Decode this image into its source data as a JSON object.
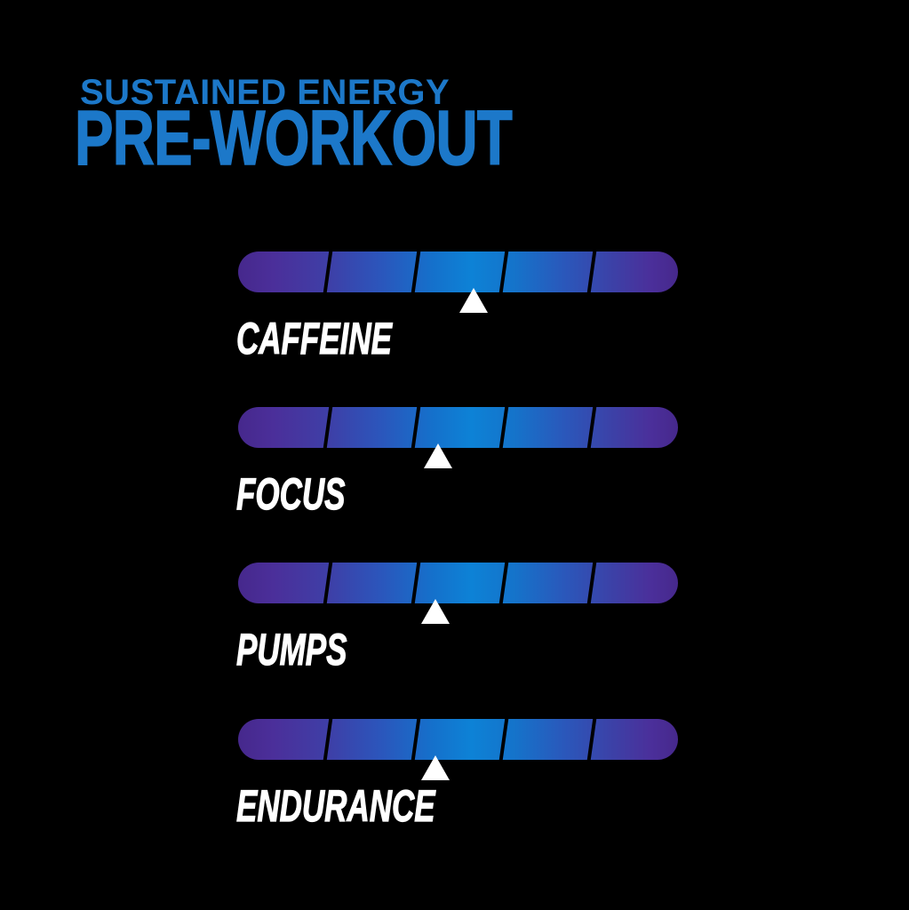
{
  "header": {
    "subtitle": "SUSTAINED ENERGY",
    "title": "PRE-WORKOUT"
  },
  "colors": {
    "background": "#000000",
    "title_blue": "#1c78c9",
    "bar_purple": "#4b2f9a",
    "bar_blue": "#2c55bb",
    "bar_bright_blue": "#0d82d6",
    "marker_white": "#ffffff",
    "label_white": "#ffffff"
  },
  "rows": [
    {
      "label": "CAFFEINE",
      "marker_pct": 53.5
    },
    {
      "label": "FOCUS",
      "marker_pct": 45.5
    },
    {
      "label": "PUMPS",
      "marker_pct": 44.8
    },
    {
      "label": "ENDURANCE",
      "marker_pct": 44.8
    }
  ],
  "chart_data": {
    "type": "bar",
    "title": "PRE-WORKOUT",
    "subtitle": "SUSTAINED ENERGY",
    "categories": [
      "CAFFEINE",
      "FOCUS",
      "PUMPS",
      "ENDURANCE"
    ],
    "series": [
      {
        "name": "marker_position_pct_of_scale",
        "values": [
          53.5,
          45.5,
          44.8,
          44.8
        ]
      }
    ],
    "values_out_of_5": [
      2.7,
      2.3,
      2.2,
      2.2
    ],
    "scale": {
      "segments": 5,
      "min": 0,
      "max": 5,
      "style": "5-segment pill bar, purple-to-bright-blue-to-purple gradient, slanted black segment dividers, white triangle marker below bar"
    },
    "legend": "none",
    "grid": false,
    "background": "#000000"
  }
}
